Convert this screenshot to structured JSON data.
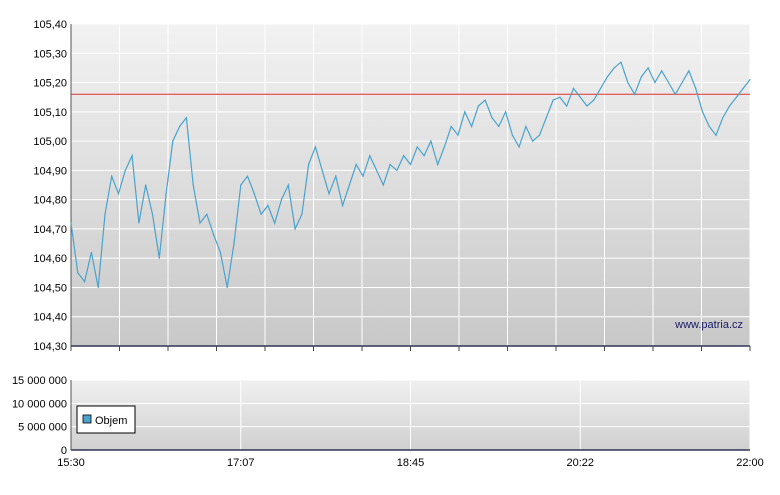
{
  "chart_data": [
    {
      "type": "line",
      "title": "",
      "xlabel": "",
      "ylabel": "",
      "ylim": [
        104.3,
        105.4
      ],
      "y_ticks": [
        "104,30",
        "104,40",
        "104,50",
        "104,60",
        "104,70",
        "104,80",
        "104,90",
        "105,00",
        "105,10",
        "105,20",
        "105,30",
        "105,40"
      ],
      "reference_line": {
        "value": 105.16,
        "color": "#dd3333"
      },
      "watermark": "www.patria.cz",
      "line_color": "#4aa3cc",
      "grid": true,
      "series": [
        {
          "x_index": [
            0,
            1,
            2,
            3,
            4,
            5,
            6,
            7,
            8,
            9,
            10,
            11,
            12,
            13,
            14,
            15,
            16,
            17,
            18,
            19,
            20,
            21,
            22,
            23,
            24,
            25,
            26,
            27,
            28,
            29,
            30,
            31,
            32,
            33,
            34,
            35,
            36,
            37,
            38,
            39,
            40,
            41,
            42,
            43,
            44,
            45,
            46,
            47,
            48,
            49,
            50,
            51,
            52,
            53,
            54,
            55,
            56,
            57,
            58,
            59,
            60,
            61,
            62,
            63,
            64,
            65,
            66,
            67,
            68,
            69,
            70,
            71,
            72,
            73,
            74,
            75,
            76,
            77,
            78,
            79,
            80,
            81,
            82,
            83,
            84,
            85,
            86,
            87,
            88,
            89,
            90,
            91,
            92,
            93,
            94,
            95,
            96,
            97,
            98,
            99,
            100
          ],
          "values": [
            104.72,
            104.55,
            104.52,
            104.62,
            104.5,
            104.75,
            104.88,
            104.82,
            104.9,
            104.95,
            104.72,
            104.85,
            104.75,
            104.6,
            104.82,
            105.0,
            105.05,
            105.08,
            104.85,
            104.72,
            104.75,
            104.68,
            104.62,
            104.5,
            104.65,
            104.85,
            104.88,
            104.82,
            104.75,
            104.78,
            104.72,
            104.8,
            104.85,
            104.7,
            104.75,
            104.92,
            104.98,
            104.9,
            104.82,
            104.88,
            104.78,
            104.85,
            104.92,
            104.88,
            104.95,
            104.9,
            104.85,
            104.92,
            104.9,
            104.95,
            104.92,
            104.98,
            104.95,
            105.0,
            104.92,
            104.98,
            105.05,
            105.02,
            105.1,
            105.05,
            105.12,
            105.14,
            105.08,
            105.05,
            105.1,
            105.02,
            104.98,
            105.05,
            105.0,
            105.02,
            105.08,
            105.14,
            105.15,
            105.12,
            105.18,
            105.15,
            105.12,
            105.14,
            105.18,
            105.22,
            105.25,
            105.27,
            105.2,
            105.16,
            105.22,
            105.25,
            105.2,
            105.24,
            105.2,
            105.16,
            105.2,
            105.24,
            105.18,
            105.1,
            105.05,
            105.02,
            105.08,
            105.12,
            105.15,
            105.18,
            105.21
          ]
        }
      ]
    },
    {
      "type": "bar",
      "title": "",
      "xlabel": "",
      "ylabel": "",
      "ylim": [
        0,
        15000000
      ],
      "y_ticks": [
        "0",
        "5 000 000",
        "10 000 000",
        "15 000 000"
      ],
      "x_ticks": [
        "15:30",
        "17:07",
        "18:45",
        "20:22",
        "22:00"
      ],
      "legend": {
        "label": "Objem",
        "color": "#4aa3cc",
        "placement": "left"
      },
      "series": [
        {
          "name": "Objem",
          "values": [
            0,
            0,
            0,
            0,
            0,
            0,
            0,
            0,
            0,
            0,
            0,
            0,
            0,
            0,
            0,
            0,
            0,
            0,
            0,
            0,
            0,
            0,
            0,
            0,
            0,
            0,
            0,
            0,
            0,
            0,
            0,
            0,
            0,
            0,
            0,
            0,
            0,
            0,
            0,
            0,
            0,
            0,
            0,
            0,
            0,
            0,
            0,
            0,
            0,
            0,
            0,
            0,
            0,
            0,
            0,
            0,
            0,
            0,
            0,
            0,
            0,
            0,
            0,
            0,
            0,
            0,
            0,
            0,
            0,
            0,
            0,
            0,
            0,
            0,
            0,
            0,
            0,
            0,
            0,
            0,
            0,
            0,
            0,
            0,
            0,
            0,
            0,
            0,
            0,
            0,
            0,
            0,
            0,
            0,
            0,
            0,
            0,
            0,
            0,
            0,
            0
          ]
        }
      ]
    }
  ]
}
